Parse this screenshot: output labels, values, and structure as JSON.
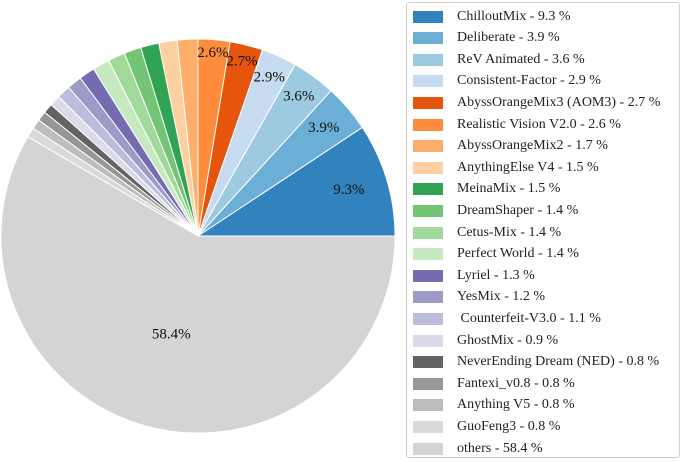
{
  "chart_data": {
    "type": "pie",
    "start_angle_deg": 0,
    "direction": "counterclockwise",
    "slices": [
      {
        "label": "ChilloutMix",
        "value": 9.3,
        "legend_text": "ChilloutMix - 9.3 %",
        "pct_label": "9.3%",
        "color": "#3182bd"
      },
      {
        "label": "Deliberate",
        "value": 3.9,
        "legend_text": "Deliberate - 3.9 %",
        "pct_label": "3.9%",
        "color": "#6baed6"
      },
      {
        "label": "ReV Animated",
        "value": 3.6,
        "legend_text": "ReV Animated - 3.6 %",
        "pct_label": "3.6%",
        "color": "#9ecae1"
      },
      {
        "label": "Consistent-Factor",
        "value": 2.9,
        "legend_text": "Consistent-Factor - 2.9 %",
        "pct_label": "2.9%",
        "color": "#c6dbef"
      },
      {
        "label": "AbyssOrangeMix3 (AOM3)",
        "value": 2.7,
        "legend_text": "AbyssOrangeMix3 (AOM3) - 2.7 %",
        "pct_label": "2.7%",
        "color": "#e6550d"
      },
      {
        "label": "Realistic Vision V2.0",
        "value": 2.6,
        "legend_text": "Realistic Vision V2.0 - 2.6 %",
        "pct_label": "2.6%",
        "color": "#fd8d3c"
      },
      {
        "label": "AbyssOrangeMix2",
        "value": 1.7,
        "legend_text": "AbyssOrangeMix2 - 1.7 %",
        "pct_label": "",
        "color": "#fdae6b"
      },
      {
        "label": "AnythingElse V4",
        "value": 1.5,
        "legend_text": "AnythingElse V4 - 1.5 %",
        "pct_label": "",
        "color": "#fdd0a2"
      },
      {
        "label": "MeinaMix",
        "value": 1.5,
        "legend_text": "MeinaMix - 1.5 %",
        "pct_label": "",
        "color": "#31a354"
      },
      {
        "label": "DreamShaper",
        "value": 1.4,
        "legend_text": "DreamShaper - 1.4 %",
        "pct_label": "",
        "color": "#74c476"
      },
      {
        "label": "Cetus-Mix",
        "value": 1.4,
        "legend_text": "Cetus-Mix - 1.4 %",
        "pct_label": "",
        "color": "#a1d99b"
      },
      {
        "label": "Perfect World",
        "value": 1.4,
        "legend_text": "Perfect World - 1.4 %",
        "pct_label": "",
        "color": "#c7e9c0"
      },
      {
        "label": "Lyriel",
        "value": 1.3,
        "legend_text": "Lyriel - 1.3 %",
        "pct_label": "",
        "color": "#756bb1"
      },
      {
        "label": "YesMix",
        "value": 1.2,
        "legend_text": "YesMix - 1.2 %",
        "pct_label": "",
        "color": "#9e9ac8"
      },
      {
        "label": "Counterfeit-V3.0",
        "value": 1.1,
        "legend_text": " Counterfeit-V3.0 - 1.1 %",
        "pct_label": "",
        "color": "#bcbddc"
      },
      {
        "label": "GhostMix",
        "value": 0.9,
        "legend_text": "GhostMix - 0.9 %",
        "pct_label": "",
        "color": "#dadaeb"
      },
      {
        "label": "NeverEnding Dream (NED)",
        "value": 0.8,
        "legend_text": "NeverEnding Dream (NED) - 0.8 %",
        "pct_label": "",
        "color": "#636363"
      },
      {
        "label": "Fantexi_v0.8",
        "value": 0.8,
        "legend_text": "Fantexi_v0.8 - 0.8 %",
        "pct_label": "",
        "color": "#969696"
      },
      {
        "label": "Anything V5",
        "value": 0.8,
        "legend_text": "Anything V5 - 0.8 %",
        "pct_label": "",
        "color": "#bdbdbd"
      },
      {
        "label": "GuoFeng3",
        "value": 0.8,
        "legend_text": "GuoFeng3 - 0.8 %",
        "pct_label": "",
        "color": "#d9d9d9"
      },
      {
        "label": "others",
        "value": 58.4,
        "legend_text": "others - 58.4 %",
        "pct_label": "58.4%",
        "color": "#d4d4d4"
      }
    ],
    "legend_placement": "right"
  }
}
